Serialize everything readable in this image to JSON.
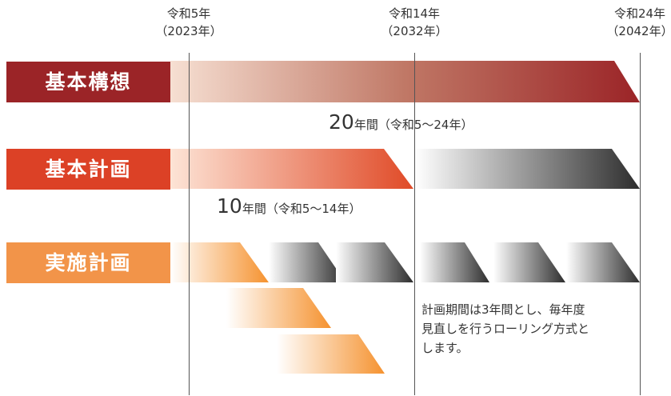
{
  "eras": [
    {
      "line1": "令和5年",
      "line2": "（2023年）"
    },
    {
      "line1": "令和14年",
      "line2": "（2032年）"
    },
    {
      "line1": "令和24年",
      "line2": "（2042年）"
    }
  ],
  "rows": [
    {
      "label": "基本構想",
      "color": "#9b2427"
    },
    {
      "label": "基本計画",
      "color": "#dc4126"
    },
    {
      "label": "実施計画",
      "color": "#f29449"
    }
  ],
  "durations": {
    "kousou": {
      "number": "20",
      "text": "年間（令和5〜24年）"
    },
    "keikaku": {
      "number": "10",
      "text": "年間（令和5〜14年）"
    }
  },
  "note": {
    "lines": [
      "計画期間は3年間とし、毎年度",
      "見直しを行うローリング方式と",
      "します。"
    ]
  }
}
